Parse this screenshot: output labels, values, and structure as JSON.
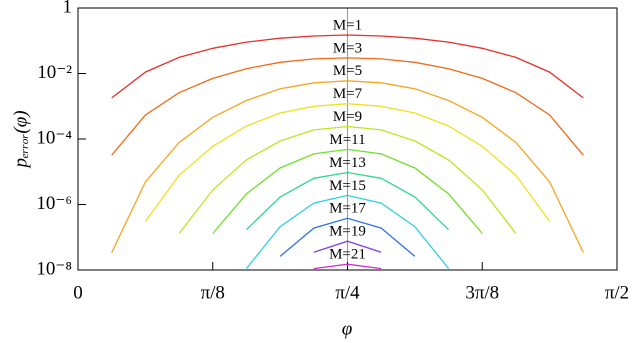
{
  "chart_data": {
    "type": "line",
    "y_label": "pₑᵣᵣₒᵣ(φ)",
    "x_label": "φ",
    "log_y": true,
    "x": [
      0,
      0.0982,
      0.1963,
      0.2945,
      0.3927,
      0.4909,
      0.589,
      0.6872,
      0.7854,
      0.8836,
      0.9817,
      1.0799,
      1.1781,
      1.2763,
      1.3744,
      1.4726,
      1.5708
    ],
    "xlim": [
      0,
      1.5708
    ],
    "xticks": [
      0,
      {
        "value": 0.3927,
        "label": "π/8"
      },
      {
        "value": 0.7854,
        "label": "π/4"
      },
      {
        "value": 1.1781,
        "label": "3π/8"
      },
      {
        "value": 1.5708,
        "label": "π/2"
      }
    ],
    "ylim": [
      1e-08,
      1
    ],
    "yticks": [
      {
        "value": 1e-08,
        "label": "10⁻⁸"
      },
      {
        "value": 1e-06,
        "label": "10⁻⁶"
      },
      {
        "value": 0.0001,
        "label": "10⁻⁴"
      },
      {
        "value": 0.01,
        "label": "10⁻²"
      },
      1
    ],
    "series": [
      {
        "name": "M=1",
        "color": "#e8302a",
        "values": [
          null,
          0.0018,
          0.011,
          0.031,
          0.059,
          0.091,
          0.12,
          0.14,
          0.15,
          0.14,
          0.12,
          0.091,
          0.059,
          0.031,
          0.011,
          0.0018,
          null
        ]
      },
      {
        "name": "M=3",
        "color": "#f06a1a",
        "values": [
          null,
          3.2e-05,
          0.00054,
          0.0026,
          0.0071,
          0.014,
          0.022,
          0.028,
          0.03,
          0.028,
          0.022,
          0.014,
          0.0071,
          0.0026,
          0.00054,
          3.2e-05,
          null
        ]
      },
      {
        "name": "M=5",
        "color": "#f5a623",
        "values": [
          null,
          3.4e-08,
          4.9e-06,
          7.8e-05,
          0.00046,
          0.0015,
          0.0034,
          0.0052,
          0.006,
          0.0052,
          0.0034,
          0.0015,
          0.00046,
          7.8e-05,
          4.9e-06,
          3.4e-08,
          null
        ]
      },
      {
        "name": "M=7",
        "color": "#f0e020",
        "values": [
          null,
          null,
          3.1e-07,
          7.8e-06,
          6e-05,
          0.00025,
          0.00062,
          0.001,
          0.0012,
          0.001,
          0.00062,
          0.00025,
          6e-05,
          7.8e-06,
          3.1e-07,
          null,
          null
        ]
      },
      {
        "name": "M=9",
        "color": "#b8e820",
        "values": [
          null,
          null,
          null,
          1.3e-07,
          2.8e-06,
          2.3e-05,
          8.7e-05,
          0.00019,
          0.00024,
          0.00019,
          8.7e-05,
          2.3e-05,
          2.8e-06,
          1.3e-07,
          null,
          null,
          null
        ]
      },
      {
        "name": "M=11",
        "color": "#6ee02a",
        "values": [
          null,
          null,
          null,
          null,
          1.3e-07,
          2.1e-06,
          1.3e-05,
          3.5e-05,
          4.8e-05,
          3.5e-05,
          1.3e-05,
          2.1e-06,
          1.3e-07,
          null,
          null,
          null,
          null
        ]
      },
      {
        "name": "M=13",
        "color": "#30d890",
        "values": [
          null,
          null,
          null,
          null,
          null,
          1.7e-07,
          1.7e-06,
          6.3e-06,
          9.5e-06,
          6.3e-06,
          1.7e-06,
          1.7e-07,
          null,
          null,
          null,
          null,
          null
        ]
      },
      {
        "name": "M=15",
        "color": "#30d0e0",
        "values": [
          null,
          null,
          null,
          null,
          null,
          1.1e-08,
          2.1e-07,
          1.1e-06,
          1.9e-06,
          1.1e-06,
          2.1e-07,
          1.1e-08,
          null,
          null,
          null,
          null,
          null
        ]
      },
      {
        "name": "M=17",
        "color": "#3070e8",
        "values": [
          null,
          null,
          null,
          null,
          null,
          null,
          2.6e-08,
          1.9e-07,
          3.8e-07,
          1.9e-07,
          2.6e-08,
          null,
          null,
          null,
          null,
          null,
          null
        ]
      },
      {
        "name": "M=19",
        "color": "#8040e0",
        "values": [
          null,
          null,
          null,
          null,
          null,
          null,
          null,
          3.5e-08,
          7.6e-08,
          3.5e-08,
          null,
          null,
          null,
          null,
          null,
          null,
          null
        ]
      },
      {
        "name": "M=21",
        "color": "#d030d0",
        "values": [
          null,
          null,
          null,
          null,
          null,
          null,
          null,
          1.1e-08,
          1.5e-08,
          1.1e-08,
          null,
          null,
          null,
          null,
          null,
          null,
          null
        ]
      }
    ]
  }
}
